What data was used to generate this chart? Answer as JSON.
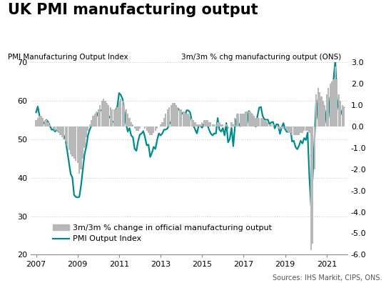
{
  "title": "UK PMI manufacturing output",
  "left_axis_label": "PMI Manufacturing Output Index",
  "right_axis_label": "3m/3m % chg manufacturing output (ONS)",
  "source_text": "Sources: IHS Markit, CIPS, ONS.",
  "left_ylim": [
    20,
    70
  ],
  "right_ylim": [
    -6.0,
    3.0
  ],
  "left_yticks": [
    20,
    30,
    40,
    50,
    60,
    70
  ],
  "right_yticks": [
    -6.0,
    -5.0,
    -4.0,
    -3.0,
    -2.0,
    -1.0,
    0.0,
    1.0,
    2.0,
    3.0
  ],
  "xticks_years": [
    2007,
    2009,
    2011,
    2013,
    2015,
    2017,
    2019,
    2021
  ],
  "pmi_color": "#008B8B",
  "bar_color": "#b8b8b8",
  "title_fontsize": 15,
  "axis_label_fontsize": 7.5,
  "tick_fontsize": 8,
  "legend_fontsize": 8,
  "source_fontsize": 7,
  "pmi_linewidth": 1.6,
  "pmi_dates": [
    2007.0,
    2007.083,
    2007.167,
    2007.25,
    2007.333,
    2007.417,
    2007.5,
    2007.583,
    2007.667,
    2007.75,
    2007.833,
    2007.917,
    2008.0,
    2008.083,
    2008.167,
    2008.25,
    2008.333,
    2008.417,
    2008.5,
    2008.583,
    2008.667,
    2008.75,
    2008.833,
    2008.917,
    2009.0,
    2009.083,
    2009.167,
    2009.25,
    2009.333,
    2009.417,
    2009.5,
    2009.583,
    2009.667,
    2009.75,
    2009.833,
    2009.917,
    2010.0,
    2010.083,
    2010.167,
    2010.25,
    2010.333,
    2010.417,
    2010.5,
    2010.583,
    2010.667,
    2010.75,
    2010.833,
    2010.917,
    2011.0,
    2011.083,
    2011.167,
    2011.25,
    2011.333,
    2011.417,
    2011.5,
    2011.583,
    2011.667,
    2011.75,
    2011.833,
    2011.917,
    2012.0,
    2012.083,
    2012.167,
    2012.25,
    2012.333,
    2012.417,
    2012.5,
    2012.583,
    2012.667,
    2012.75,
    2012.833,
    2012.917,
    2013.0,
    2013.083,
    2013.167,
    2013.25,
    2013.333,
    2013.417,
    2013.5,
    2013.583,
    2013.667,
    2013.75,
    2013.833,
    2013.917,
    2014.0,
    2014.083,
    2014.167,
    2014.25,
    2014.333,
    2014.417,
    2014.5,
    2014.583,
    2014.667,
    2014.75,
    2014.833,
    2014.917,
    2015.0,
    2015.083,
    2015.167,
    2015.25,
    2015.333,
    2015.417,
    2015.5,
    2015.583,
    2015.667,
    2015.75,
    2015.833,
    2015.917,
    2016.0,
    2016.083,
    2016.167,
    2016.25,
    2016.333,
    2016.417,
    2016.5,
    2016.583,
    2016.667,
    2016.75,
    2016.833,
    2016.917,
    2017.0,
    2017.083,
    2017.167,
    2017.25,
    2017.333,
    2017.417,
    2017.5,
    2017.583,
    2017.667,
    2017.75,
    2017.833,
    2017.917,
    2018.0,
    2018.083,
    2018.167,
    2018.25,
    2018.333,
    2018.417,
    2018.5,
    2018.583,
    2018.667,
    2018.75,
    2018.833,
    2018.917,
    2019.0,
    2019.083,
    2019.167,
    2019.25,
    2019.333,
    2019.417,
    2019.5,
    2019.583,
    2019.667,
    2019.75,
    2019.833,
    2019.917,
    2020.0,
    2020.083,
    2020.167,
    2020.25,
    2020.333,
    2020.417,
    2020.5,
    2020.583,
    2020.667,
    2020.75,
    2020.833,
    2020.917,
    2021.0,
    2021.083,
    2021.167,
    2021.25,
    2021.333,
    2021.417,
    2021.5,
    2021.583,
    2021.667,
    2021.75,
    2021.833
  ],
  "pmi_values": [
    57.0,
    58.5,
    56.0,
    55.5,
    54.0,
    54.5,
    55.0,
    54.5,
    53.5,
    52.5,
    52.5,
    52.0,
    52.5,
    52.0,
    52.8,
    52.0,
    51.0,
    50.0,
    47.0,
    44.0,
    41.0,
    40.0,
    35.5,
    35.0,
    34.9,
    35.0,
    38.0,
    42.0,
    46.0,
    48.0,
    51.0,
    52.5,
    53.5,
    54.5,
    55.5,
    56.0,
    57.0,
    57.5,
    57.5,
    58.0,
    57.5,
    57.5,
    56.0,
    55.5,
    54.5,
    54.5,
    57.5,
    58.5,
    62.0,
    61.5,
    60.5,
    57.5,
    54.0,
    52.0,
    52.9,
    51.0,
    50.5,
    47.5,
    47.0,
    49.5,
    51.2,
    51.5,
    52.1,
    50.5,
    48.4,
    48.6,
    45.4,
    46.5,
    48.0,
    47.5,
    49.8,
    51.5,
    51.0,
    51.5,
    52.5,
    52.5,
    52.8,
    54.0,
    54.5,
    57.0,
    56.5,
    56.0,
    58.0,
    57.5,
    57.0,
    56.5,
    56.0,
    57.5,
    57.5,
    57.0,
    55.0,
    53.5,
    52.5,
    51.5,
    53.5,
    53.5,
    53.0,
    54.0,
    54.0,
    53.9,
    52.5,
    51.5,
    51.0,
    51.5,
    51.5,
    55.5,
    52.5,
    52.0,
    52.9,
    51.0,
    54.2,
    49.2,
    50.1,
    53.0,
    48.2,
    53.4,
    55.4,
    54.2,
    53.4,
    56.1,
    55.9,
    55.1,
    54.2,
    57.3,
    56.7,
    56.3,
    55.1,
    53.3,
    56.0,
    58.2,
    58.4,
    56.0,
    55.2,
    55.0,
    55.1,
    53.9,
    54.4,
    54.5,
    52.8,
    53.9,
    53.8,
    51.4,
    53.1,
    54.2,
    52.6,
    51.9,
    52.1,
    53.1,
    49.4,
    49.6,
    48.0,
    47.4,
    48.3,
    49.6,
    48.9,
    50.3,
    49.8,
    51.7,
    40.3,
    32.6,
    40.7,
    50.1,
    60.3,
    55.2,
    56.0,
    53.7,
    57.3,
    57.5,
    54.1,
    55.6,
    60.9,
    60.6,
    65.6,
    70.4,
    60.4,
    57.7,
    56.3,
    57.6,
    58.2
  ],
  "bar_dates": [
    2007.0,
    2007.083,
    2007.167,
    2007.25,
    2007.333,
    2007.417,
    2007.5,
    2007.583,
    2007.667,
    2007.75,
    2007.833,
    2007.917,
    2008.0,
    2008.083,
    2008.167,
    2008.25,
    2008.333,
    2008.417,
    2008.5,
    2008.583,
    2008.667,
    2008.75,
    2008.833,
    2008.917,
    2009.0,
    2009.083,
    2009.167,
    2009.25,
    2009.333,
    2009.417,
    2009.5,
    2009.583,
    2009.667,
    2009.75,
    2009.833,
    2009.917,
    2010.0,
    2010.083,
    2010.167,
    2010.25,
    2010.333,
    2010.417,
    2010.5,
    2010.583,
    2010.667,
    2010.75,
    2010.833,
    2010.917,
    2011.0,
    2011.083,
    2011.167,
    2011.25,
    2011.333,
    2011.417,
    2011.5,
    2011.583,
    2011.667,
    2011.75,
    2011.833,
    2011.917,
    2012.0,
    2012.083,
    2012.167,
    2012.25,
    2012.333,
    2012.417,
    2012.5,
    2012.583,
    2012.667,
    2012.75,
    2012.833,
    2012.917,
    2013.0,
    2013.083,
    2013.167,
    2013.25,
    2013.333,
    2013.417,
    2013.5,
    2013.583,
    2013.667,
    2013.75,
    2013.833,
    2013.917,
    2014.0,
    2014.083,
    2014.167,
    2014.25,
    2014.333,
    2014.417,
    2014.5,
    2014.583,
    2014.667,
    2014.75,
    2014.833,
    2014.917,
    2015.0,
    2015.083,
    2015.167,
    2015.25,
    2015.333,
    2015.417,
    2015.5,
    2015.583,
    2015.667,
    2015.75,
    2015.833,
    2015.917,
    2016.0,
    2016.083,
    2016.167,
    2016.25,
    2016.333,
    2016.417,
    2016.5,
    2016.583,
    2016.667,
    2016.75,
    2016.833,
    2016.917,
    2017.0,
    2017.083,
    2017.167,
    2017.25,
    2017.333,
    2017.417,
    2017.5,
    2017.583,
    2017.667,
    2017.75,
    2017.833,
    2017.917,
    2018.0,
    2018.083,
    2018.167,
    2018.25,
    2018.333,
    2018.417,
    2018.5,
    2018.583,
    2018.667,
    2018.75,
    2018.833,
    2018.917,
    2019.0,
    2019.083,
    2019.167,
    2019.25,
    2019.333,
    2019.417,
    2019.5,
    2019.583,
    2019.667,
    2019.75,
    2019.833,
    2019.917,
    2020.0,
    2020.083,
    2020.167,
    2020.25,
    2020.333,
    2020.417,
    2020.5,
    2020.583,
    2020.667,
    2020.75,
    2020.833,
    2020.917,
    2021.0,
    2021.083,
    2021.167,
    2021.25,
    2021.333,
    2021.417,
    2021.5,
    2021.583,
    2021.667,
    2021.75,
    2021.833
  ],
  "bar_values": [
    0.3,
    0.4,
    0.5,
    0.5,
    0.4,
    0.3,
    0.3,
    0.2,
    0.1,
    0.0,
    -0.1,
    -0.2,
    -0.2,
    -0.3,
    -0.4,
    -0.5,
    -0.6,
    -0.7,
    -0.9,
    -1.1,
    -1.3,
    -1.4,
    -1.5,
    -1.6,
    -1.7,
    -2.2,
    -2.0,
    -1.5,
    -1.0,
    -0.5,
    -0.2,
    0.1,
    0.3,
    0.5,
    0.6,
    0.7,
    0.8,
    1.0,
    1.2,
    1.3,
    1.2,
    1.1,
    1.0,
    0.9,
    0.8,
    0.8,
    0.8,
    0.9,
    1.2,
    1.3,
    1.2,
    1.0,
    0.8,
    0.6,
    0.4,
    0.2,
    0.1,
    -0.1,
    -0.2,
    -0.2,
    -0.1,
    0.0,
    0.0,
    -0.1,
    -0.2,
    -0.3,
    -0.4,
    -0.4,
    -0.3,
    -0.2,
    -0.1,
    0.0,
    0.1,
    0.2,
    0.4,
    0.6,
    0.8,
    0.9,
    1.0,
    1.1,
    1.1,
    1.0,
    0.9,
    0.8,
    0.8,
    0.7,
    0.7,
    0.6,
    0.6,
    0.5,
    0.4,
    0.3,
    0.2,
    0.1,
    0.1,
    0.1,
    0.2,
    0.3,
    0.3,
    0.3,
    0.2,
    0.2,
    0.1,
    0.1,
    0.1,
    0.2,
    0.2,
    0.1,
    0.1,
    0.0,
    0.1,
    -0.1,
    0.0,
    0.2,
    0.1,
    0.4,
    0.6,
    0.6,
    0.6,
    0.6,
    0.6,
    0.7,
    0.7,
    0.7,
    0.7,
    0.6,
    0.5,
    0.4,
    0.4,
    0.4,
    0.4,
    0.4,
    0.3,
    0.3,
    0.2,
    0.1,
    0.1,
    0.1,
    0.0,
    0.0,
    -0.1,
    -0.1,
    -0.1,
    -0.1,
    -0.1,
    -0.2,
    -0.3,
    -0.3,
    -0.4,
    -0.4,
    -0.4,
    -0.4,
    -0.4,
    -0.3,
    -0.3,
    -0.2,
    -0.2,
    -0.2,
    -0.3,
    -5.8,
    -5.5,
    -2.0,
    1.5,
    1.8,
    1.6,
    1.4,
    1.2,
    1.0,
    1.5,
    1.8,
    2.0,
    2.1,
    2.2,
    2.8,
    2.2,
    1.5,
    1.2,
    1.0,
    0.9
  ]
}
